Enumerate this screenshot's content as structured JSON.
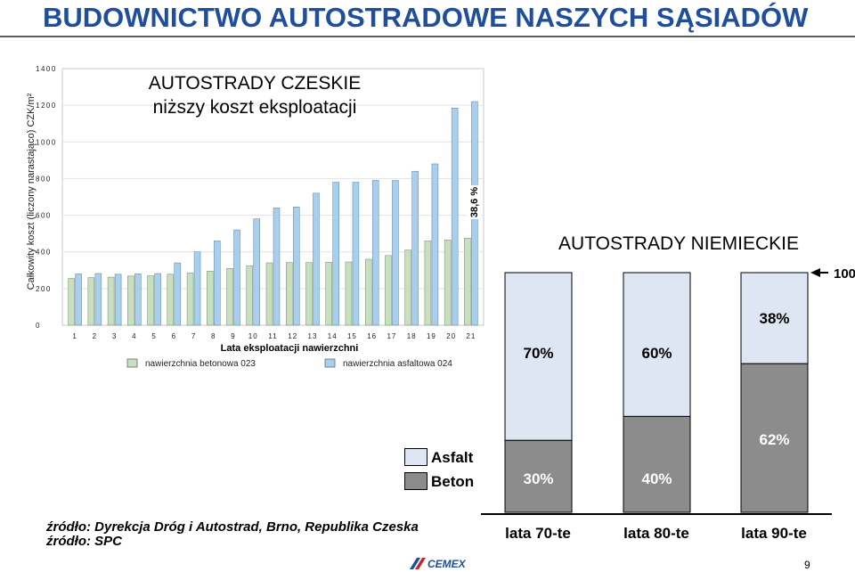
{
  "title": "BUDOWNICTWO AUTOSTRADOWE NASZYCH SĄSIADÓW",
  "czech": {
    "heading1": "AUTOSTRADY CZESKIE",
    "heading2": "niższy koszt eksploatacji",
    "annotation": "38,6 %",
    "colors": {
      "beton": "#c8e0c0",
      "asfalt": "#a8cfee"
    }
  },
  "german": {
    "heading": "AUTOSTRADY NIEMIECKIE",
    "marker_label": "100",
    "legend": [
      {
        "label": "Asfalt",
        "color": "#dde6f2"
      },
      {
        "label": "Beton",
        "color": "#8c8c8c"
      }
    ],
    "colors": {
      "asfalt": "#dde6f2",
      "beton": "#8c8c8c"
    }
  },
  "sources": [
    "źródło: Dyrekcja Dróg i Autostrad, Brno, Republika Czeska",
    "źródło: SPC"
  ],
  "logo_text": "CEMEX",
  "page_number": "9",
  "chart_data": [
    {
      "type": "bar",
      "ylabel": "Całkowity koszt (liczony narastająco) CZK/m²",
      "xlabel": "Lata eksploatacji nawierzchni",
      "ylim": [
        0,
        1400
      ],
      "yticks": [
        0,
        200,
        400,
        600,
        800,
        1000,
        1200,
        1400
      ],
      "categories": [
        "1",
        "2",
        "3",
        "4",
        "5",
        "6",
        "7",
        "8",
        "9",
        "10",
        "11",
        "12",
        "13",
        "14",
        "15",
        "16",
        "17",
        "18",
        "19",
        "20",
        "21"
      ],
      "series": [
        {
          "name": "nawierzchnia betonowa 023",
          "values": [
            255,
            260,
            262,
            268,
            270,
            278,
            285,
            295,
            310,
            325,
            340,
            342,
            342,
            343,
            345,
            360,
            380,
            410,
            460,
            465,
            475
          ]
        },
        {
          "name": "nawierzchnia asfaltowa 024",
          "values": [
            280,
            282,
            278,
            280,
            282,
            340,
            400,
            460,
            520,
            580,
            640,
            645,
            720,
            780,
            780,
            790,
            790,
            840,
            880,
            1185,
            1220
          ]
        }
      ],
      "legend_position": "bottom"
    },
    {
      "type": "bar",
      "stacked": true,
      "categories": [
        "lata 70-te",
        "lata 80-te",
        "lata 90-te"
      ],
      "series": [
        {
          "name": "Beton",
          "values": [
            30,
            40,
            62
          ],
          "labels": [
            "30%",
            "40%",
            "62%"
          ]
        },
        {
          "name": "Asfalt",
          "values": [
            70,
            60,
            38
          ],
          "labels": [
            "70%",
            "60%",
            "38%"
          ]
        }
      ]
    }
  ]
}
